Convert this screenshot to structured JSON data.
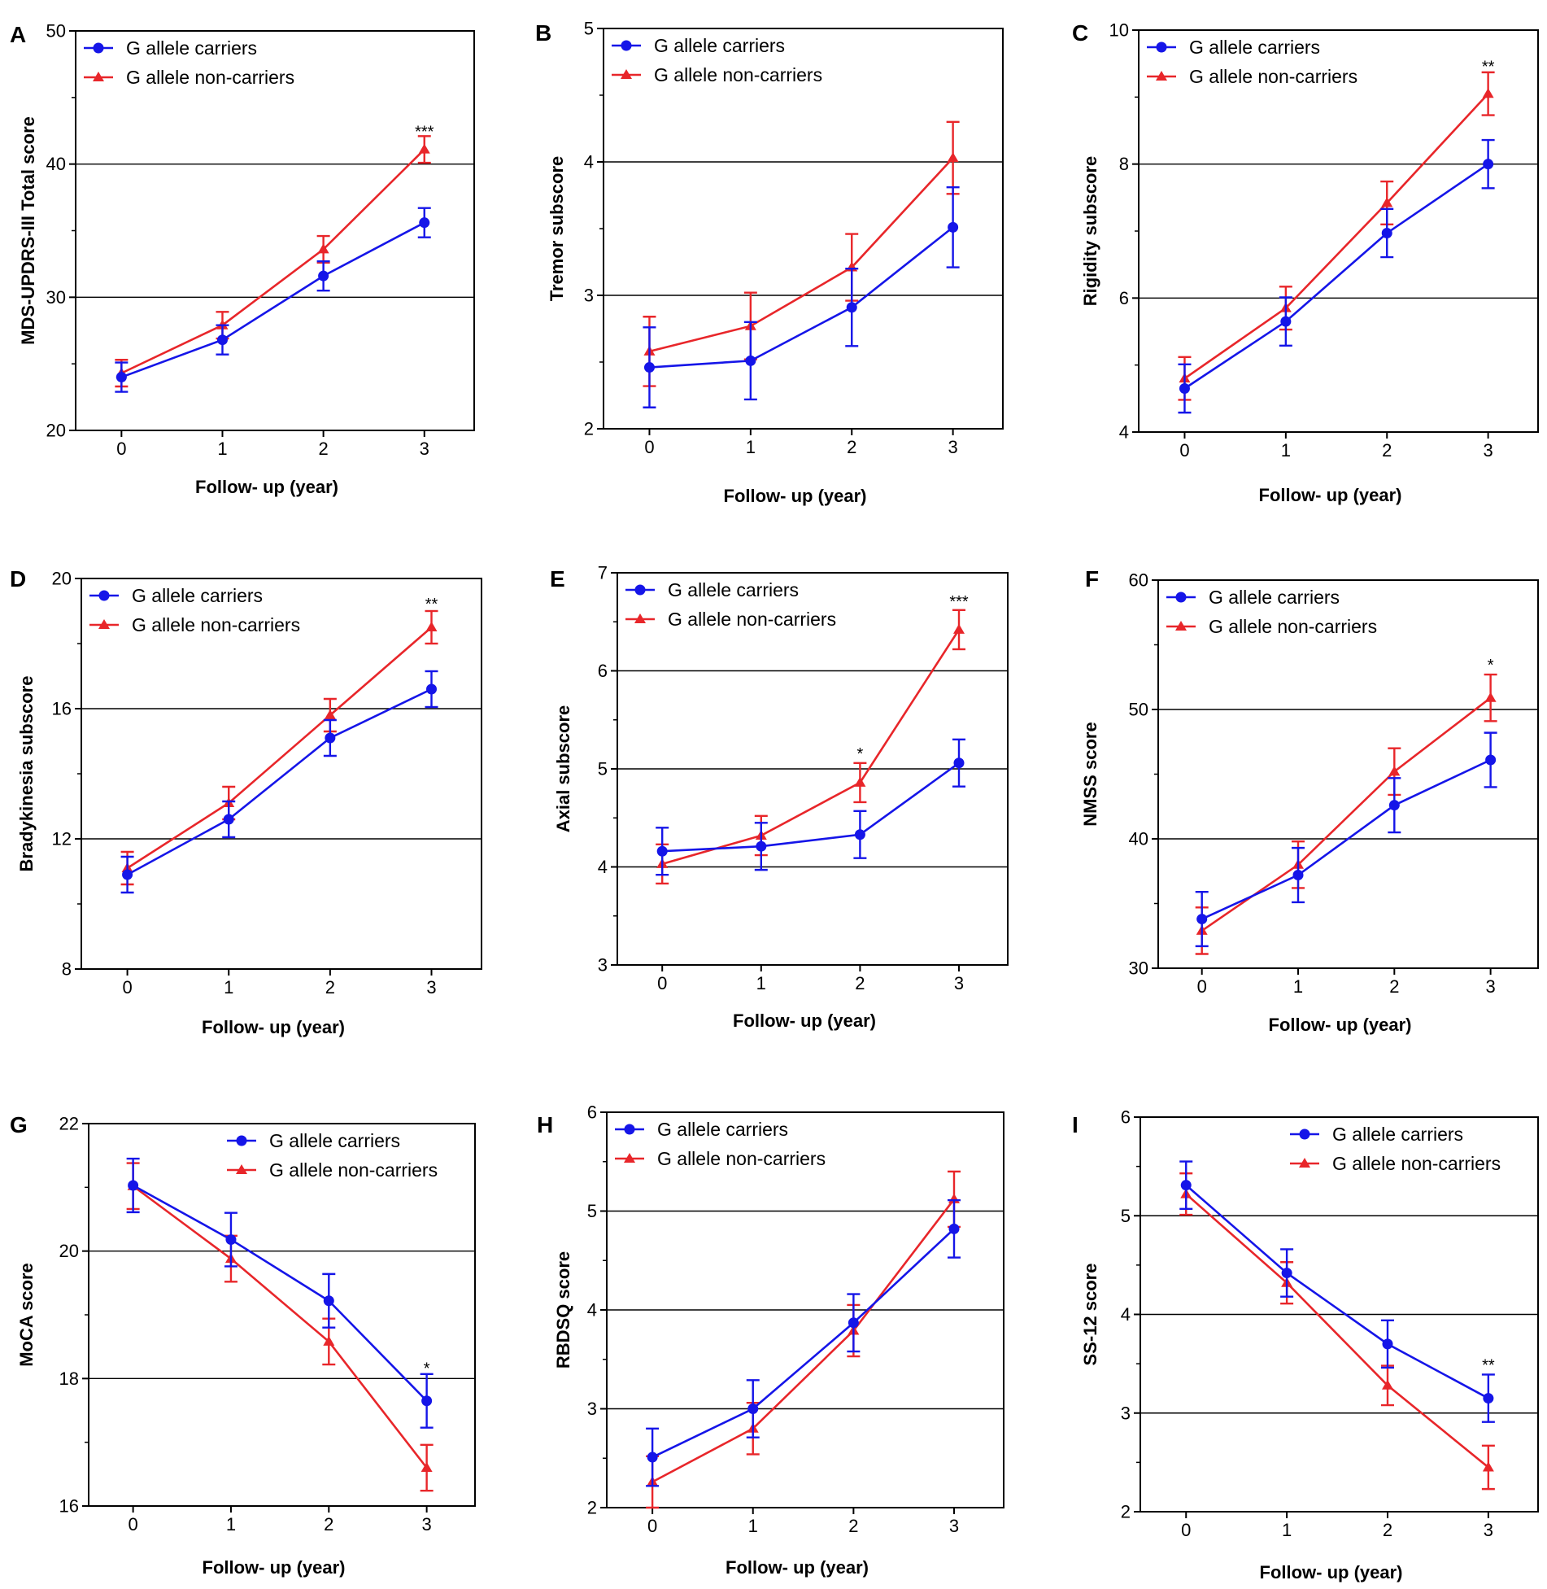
{
  "figure": {
    "colors": {
      "carriers": "#1515e8",
      "non_carriers": "#e8262a",
      "gridline": "#000000",
      "axis": "#000000"
    },
    "legend": {
      "carriers": "G allele carriers",
      "non_carriers": "G allele non-carriers"
    }
  },
  "chart_data": [
    {
      "panel": "A",
      "type": "line",
      "xlabel": "Follow- up (year)",
      "ylabel": "MDS-UPDRS-III Total score",
      "x": [
        0,
        1,
        2,
        3
      ],
      "ylim": [
        20,
        50
      ],
      "yticks": [
        20,
        30,
        40,
        50
      ],
      "gridlines": [
        30,
        40
      ],
      "legend_position": "top-left",
      "series": [
        {
          "name": "G allele carriers",
          "marker": "circle",
          "values": [
            24.0,
            26.8,
            31.6,
            35.6
          ],
          "errors": [
            1.1,
            1.1,
            1.1,
            1.1
          ]
        },
        {
          "name": "G allele non-carriers",
          "marker": "triangle",
          "values": [
            24.3,
            27.9,
            33.6,
            41.1
          ],
          "errors": [
            1.0,
            1.0,
            1.0,
            1.0
          ]
        }
      ],
      "annotations": [
        {
          "x": 3,
          "y": 42.4,
          "text": "***"
        }
      ]
    },
    {
      "panel": "B",
      "type": "line",
      "xlabel": "Follow- up (year)",
      "ylabel": "Tremor subscore",
      "x": [
        0,
        1,
        2,
        3
      ],
      "ylim": [
        2,
        5
      ],
      "yticks": [
        2,
        3,
        4,
        5
      ],
      "gridlines": [
        3,
        4
      ],
      "legend_position": "top-left",
      "series": [
        {
          "name": "G allele carriers",
          "marker": "circle",
          "values": [
            2.46,
            2.51,
            2.91,
            3.51
          ],
          "errors": [
            0.3,
            0.29,
            0.29,
            0.3
          ]
        },
        {
          "name": "G allele non-carriers",
          "marker": "triangle",
          "values": [
            2.58,
            2.77,
            3.21,
            4.03
          ],
          "errors": [
            0.26,
            0.25,
            0.25,
            0.27
          ]
        }
      ],
      "annotations": []
    },
    {
      "panel": "C",
      "type": "line",
      "xlabel": "Follow- up (year)",
      "ylabel": "Rigidity subscore",
      "x": [
        0,
        1,
        2,
        3
      ],
      "ylim": [
        4,
        10
      ],
      "yticks": [
        4,
        6,
        8,
        10
      ],
      "gridlines": [
        6,
        8
      ],
      "legend_position": "top-left",
      "series": [
        {
          "name": "G allele carriers",
          "marker": "circle",
          "values": [
            4.65,
            5.65,
            6.97,
            8.0
          ],
          "errors": [
            0.36,
            0.36,
            0.36,
            0.36
          ]
        },
        {
          "name": "G allele non-carriers",
          "marker": "triangle",
          "values": [
            4.8,
            5.85,
            7.42,
            9.05
          ],
          "errors": [
            0.32,
            0.32,
            0.32,
            0.32
          ]
        }
      ],
      "annotations": [
        {
          "x": 3,
          "y": 9.45,
          "text": "**"
        }
      ]
    },
    {
      "panel": "D",
      "type": "line",
      "xlabel": "Follow- up (year)",
      "ylabel": "Bradykinesia subscore",
      "x": [
        0,
        1,
        2,
        3
      ],
      "ylim": [
        8,
        20
      ],
      "yticks": [
        8,
        12,
        16,
        20
      ],
      "gridlines": [
        12,
        16
      ],
      "legend_position": "top-left",
      "series": [
        {
          "name": "G allele carriers",
          "marker": "circle",
          "values": [
            10.9,
            12.6,
            15.1,
            16.6
          ],
          "errors": [
            0.55,
            0.55,
            0.55,
            0.55
          ]
        },
        {
          "name": "G allele non-carriers",
          "marker": "triangle",
          "values": [
            11.1,
            13.1,
            15.8,
            18.5
          ],
          "errors": [
            0.5,
            0.5,
            0.5,
            0.5
          ]
        }
      ],
      "annotations": [
        {
          "x": 3,
          "y": 19.2,
          "text": "**"
        }
      ]
    },
    {
      "panel": "E",
      "type": "line",
      "xlabel": "Follow- up (year)",
      "ylabel": "Axial subscore",
      "x": [
        0,
        1,
        2,
        3
      ],
      "ylim": [
        3,
        7
      ],
      "yticks": [
        3,
        4,
        5,
        6,
        7
      ],
      "gridlines": [
        4,
        5,
        6
      ],
      "legend_position": "top-left",
      "series": [
        {
          "name": "G allele carriers",
          "marker": "circle",
          "values": [
            4.16,
            4.21,
            4.33,
            5.06
          ],
          "errors": [
            0.24,
            0.24,
            0.24,
            0.24
          ]
        },
        {
          "name": "G allele non-carriers",
          "marker": "triangle",
          "values": [
            4.03,
            4.32,
            4.86,
            6.42
          ],
          "errors": [
            0.2,
            0.2,
            0.2,
            0.2
          ]
        }
      ],
      "annotations": [
        {
          "x": 2,
          "y": 5.15,
          "text": "*"
        },
        {
          "x": 3,
          "y": 6.7,
          "text": "***"
        }
      ]
    },
    {
      "panel": "F",
      "type": "line",
      "xlabel": "Follow- up (year)",
      "ylabel": "NMSS score",
      "x": [
        0,
        1,
        2,
        3
      ],
      "ylim": [
        30,
        60
      ],
      "yticks": [
        30,
        40,
        50,
        60
      ],
      "gridlines": [
        40,
        50
      ],
      "legend_position": "top-left",
      "series": [
        {
          "name": "G allele carriers",
          "marker": "circle",
          "values": [
            33.8,
            37.2,
            42.6,
            46.1
          ],
          "errors": [
            2.1,
            2.1,
            2.1,
            2.1
          ]
        },
        {
          "name": "G allele non-carriers",
          "marker": "triangle",
          "values": [
            32.9,
            38.0,
            45.2,
            50.9
          ],
          "errors": [
            1.8,
            1.8,
            1.8,
            1.8
          ]
        }
      ],
      "annotations": [
        {
          "x": 3,
          "y": 53.4,
          "text": "*"
        }
      ]
    },
    {
      "panel": "G",
      "type": "line",
      "xlabel": "Follow- up (year)",
      "ylabel": "MoCA score",
      "x": [
        0,
        1,
        2,
        3
      ],
      "ylim": [
        16,
        22
      ],
      "yticks": [
        16,
        18,
        20,
        22
      ],
      "gridlines": [
        18,
        20
      ],
      "legend_position": "top-right",
      "series": [
        {
          "name": "G allele carriers",
          "marker": "circle",
          "values": [
            21.03,
            20.18,
            19.22,
            17.65
          ],
          "errors": [
            0.42,
            0.42,
            0.42,
            0.42
          ]
        },
        {
          "name": "G allele non-carriers",
          "marker": "triangle",
          "values": [
            21.02,
            19.88,
            18.58,
            16.6
          ],
          "errors": [
            0.36,
            0.36,
            0.36,
            0.36
          ]
        }
      ],
      "annotations": [
        {
          "x": 3,
          "y": 18.15,
          "text": "*"
        }
      ]
    },
    {
      "panel": "H",
      "type": "line",
      "xlabel": "Follow- up (year)",
      "ylabel": "RBDSQ score",
      "x": [
        0,
        1,
        2,
        3
      ],
      "ylim": [
        2,
        6
      ],
      "yticks": [
        2,
        3,
        4,
        5,
        6
      ],
      "gridlines": [
        3,
        4,
        5
      ],
      "legend_position": "top-left",
      "series": [
        {
          "name": "G allele carriers",
          "marker": "circle",
          "values": [
            2.51,
            3.0,
            3.87,
            4.82
          ],
          "errors": [
            0.29,
            0.29,
            0.29,
            0.29
          ]
        },
        {
          "name": "G allele non-carriers",
          "marker": "triangle",
          "values": [
            2.26,
            2.8,
            3.79,
            5.12
          ],
          "errors": [
            0.26,
            0.26,
            0.26,
            0.28
          ]
        }
      ],
      "annotations": []
    },
    {
      "panel": "I",
      "type": "line",
      "xlabel": "Follow- up (year)",
      "ylabel": "SS-12 score",
      "x": [
        0,
        1,
        2,
        3
      ],
      "ylim": [
        2,
        6
      ],
      "yticks": [
        2,
        3,
        4,
        5,
        6
      ],
      "gridlines": [
        3,
        4,
        5
      ],
      "legend_position": "top-right",
      "series": [
        {
          "name": "G allele carriers",
          "marker": "circle",
          "values": [
            5.31,
            4.42,
            3.7,
            3.15
          ],
          "errors": [
            0.24,
            0.24,
            0.24,
            0.24
          ]
        },
        {
          "name": "G allele non-carriers",
          "marker": "triangle",
          "values": [
            5.22,
            4.32,
            3.28,
            2.45
          ],
          "errors": [
            0.21,
            0.21,
            0.2,
            0.22
          ]
        }
      ],
      "annotations": [
        {
          "x": 3,
          "y": 3.48,
          "text": "**"
        }
      ]
    }
  ]
}
